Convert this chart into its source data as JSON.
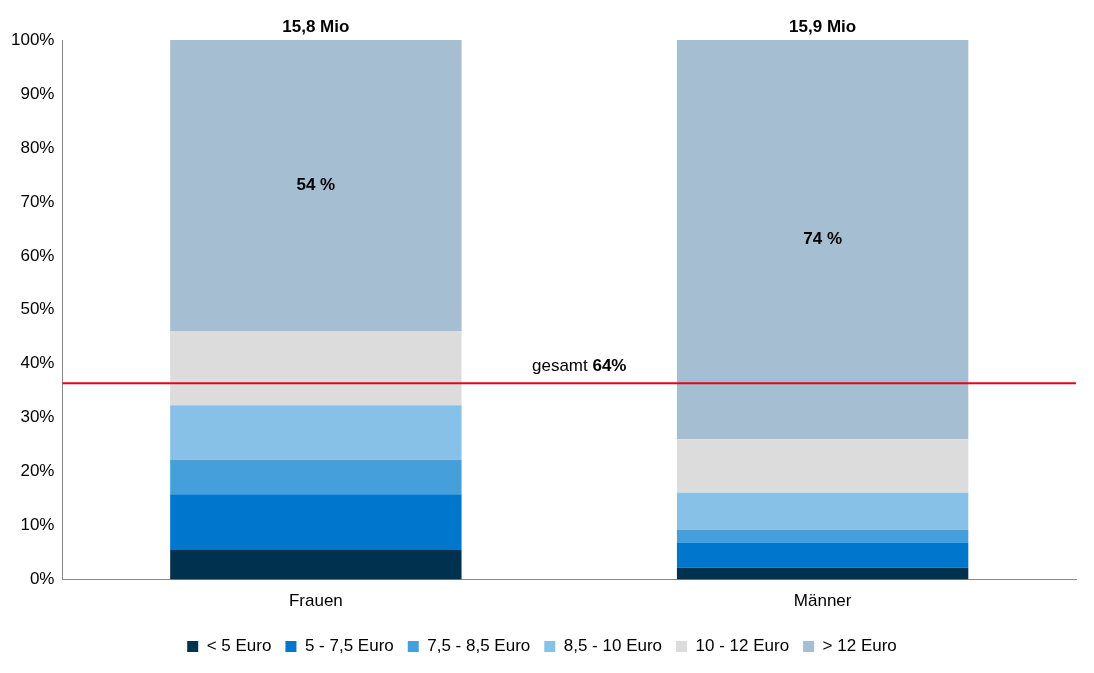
{
  "chart_data": {
    "type": "bar",
    "stacked": true,
    "categories": [
      "Frauen",
      "Männer"
    ],
    "series": [
      {
        "name": "< 5 Euro",
        "color": "#00324f",
        "values": [
          5.5,
          2.2
        ]
      },
      {
        "name": "5 - 7,5 Euro",
        "color": "#0077cc",
        "values": [
          10.3,
          4.6
        ]
      },
      {
        "name": "7,5 - 8,5 Euro",
        "color": "#449fdb",
        "values": [
          6.4,
          2.5
        ]
      },
      {
        "name": "8,5 - 10 Euro",
        "color": "#87c1e8",
        "values": [
          10.1,
          6.8
        ]
      },
      {
        "name": "10 - 12 Euro",
        "color": "#dcdcdc",
        "values": [
          13.7,
          9.9
        ]
      },
      {
        "name": "> 12 Euro",
        "color": "#a6bed2",
        "values": [
          54,
          74
        ],
        "value_labels": [
          "54 %",
          "74 %"
        ]
      }
    ],
    "ylim": [
      0,
      100
    ],
    "yticks": [
      {
        "value": 0,
        "label": "0%"
      },
      {
        "value": 10,
        "label": "10%"
      },
      {
        "value": 20,
        "label": "20%"
      },
      {
        "value": 30,
        "label": "30%"
      },
      {
        "value": 40,
        "label": "40%"
      },
      {
        "value": 50,
        "label": "50%"
      },
      {
        "value": 60,
        "label": "60%"
      },
      {
        "value": 70,
        "label": "70%"
      },
      {
        "value": 80,
        "label": "80%"
      },
      {
        "value": 90,
        "label": "90%"
      },
      {
        "value": 100,
        "label": "100%"
      }
    ],
    "annotations": [
      {
        "text": "15,8 Mio",
        "x": "Frauen",
        "y": 100
      },
      {
        "text": "15,9 Mio",
        "x": "Männer",
        "y": 100
      }
    ],
    "ref_lines": [
      {
        "axis": "y",
        "value": 36.4,
        "label": "gesamt 64%",
        "color": "#e30613"
      }
    ],
    "legend": "bottom",
    "grid": false
  }
}
